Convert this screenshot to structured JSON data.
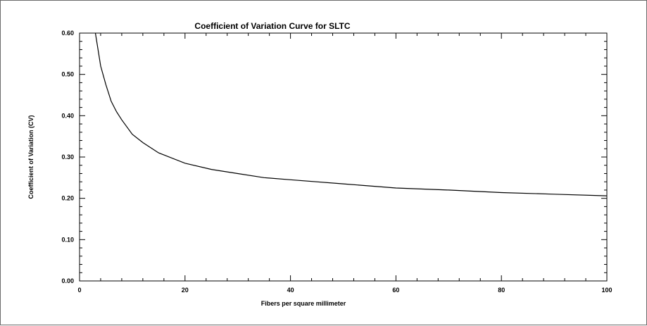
{
  "chart_data": {
    "type": "line",
    "title": "Coefficient of Variation Curve for SLTC",
    "xlabel": "Fibers per square millimeter",
    "ylabel": "Coefficient of Variation (CV)",
    "xlim": [
      0,
      100
    ],
    "ylim": [
      0.0,
      0.6
    ],
    "xticks": [
      0,
      20,
      40,
      60,
      80,
      100
    ],
    "xtick_labels": [
      "0",
      "20",
      "40",
      "60",
      "80",
      "100"
    ],
    "yticks": [
      0.0,
      0.1,
      0.2,
      0.3,
      0.4,
      0.5,
      0.6
    ],
    "ytick_labels": [
      "0.00",
      "0.10",
      "0.20",
      "0.30",
      "0.40",
      "0.50",
      "0.60"
    ],
    "grid": false,
    "legend": "none",
    "line_color": "#000000",
    "series": [
      {
        "x": [
          3,
          4,
          5,
          6,
          7,
          8,
          10,
          12,
          15,
          20,
          25,
          30,
          35,
          40,
          50,
          60,
          70,
          80,
          90,
          100
        ],
        "y": [
          0.6,
          0.52,
          0.475,
          0.435,
          0.41,
          0.39,
          0.355,
          0.335,
          0.31,
          0.285,
          0.27,
          0.26,
          0.25,
          0.245,
          0.235,
          0.225,
          0.22,
          0.214,
          0.21,
          0.206
        ]
      }
    ]
  }
}
